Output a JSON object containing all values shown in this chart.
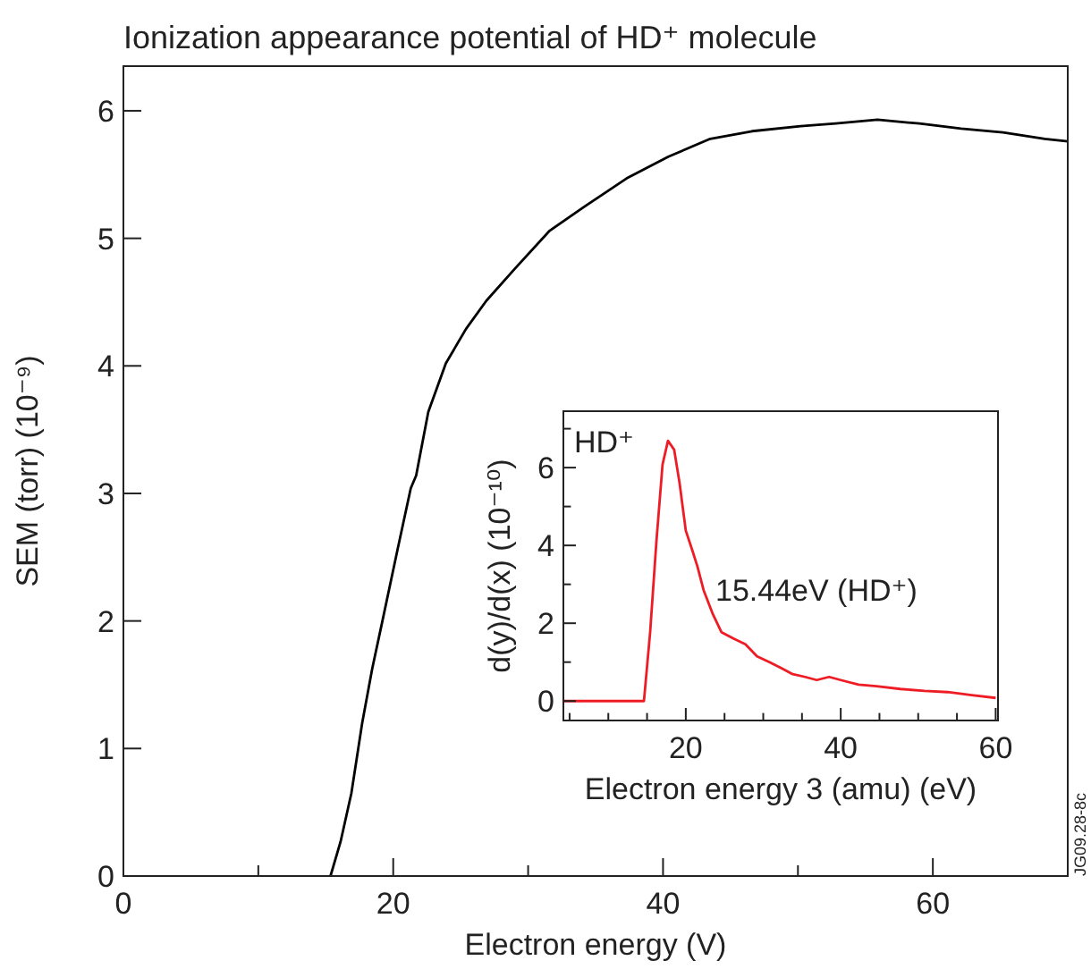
{
  "chart_data": [
    {
      "type": "line",
      "title": "Ionization appearance potential of HD⁺ molecule",
      "xlabel": "Electron energy (V)",
      "ylabel": "SEM (torr) (10⁻⁹)",
      "xlim": [
        0,
        70
      ],
      "ylim": [
        0,
        6.35
      ],
      "xticks": [
        0,
        {
          "value": 10,
          "label": null
        },
        20,
        {
          "value": 30,
          "label": null
        },
        40,
        {
          "value": 50,
          "label": null
        },
        60
      ],
      "yticks": [
        0,
        1,
        2,
        3,
        4,
        5,
        6
      ],
      "annotations": [
        "JG09.28-8c"
      ],
      "series": [
        {
          "color": "#000000",
          "x": [
            15.35,
            16.1,
            16.9,
            17.7,
            18.45,
            19.2,
            20.3,
            21.3,
            21.7,
            22.6,
            23.9,
            25.4,
            26.9,
            29.0,
            31.6,
            34.2,
            37.3,
            40.4,
            43.5,
            46.6,
            50.2,
            52.8,
            55.9,
            59.0,
            62.1,
            65.2,
            68.3,
            70
          ],
          "values": [
            0,
            0.27,
            0.65,
            1.2,
            1.63,
            2.0,
            2.55,
            3.04,
            3.14,
            3.64,
            4.02,
            4.29,
            4.51,
            4.76,
            5.06,
            5.25,
            5.47,
            5.64,
            5.78,
            5.84,
            5.88,
            5.9,
            5.93,
            5.9,
            5.86,
            5.83,
            5.78,
            5.76
          ]
        }
      ]
    },
    {
      "type": "line",
      "xlabel": "Electron energy 3 (amu) (eV)",
      "ylabel": "d(y)/d(x) (10⁻¹⁰)",
      "xlim": [
        4.2,
        60.3
      ],
      "ylim": [
        -0.5,
        7.45
      ],
      "xticks": [
        {
          "value": 5,
          "label": null
        },
        {
          "value": 10,
          "label": null
        },
        {
          "value": 15,
          "label": null
        },
        20,
        {
          "value": 25,
          "label": null
        },
        {
          "value": 30,
          "label": null
        },
        {
          "value": 35,
          "label": null
        },
        40,
        {
          "value": 45,
          "label": null
        },
        {
          "value": 50,
          "label": null
        },
        {
          "value": 55,
          "label": null
        },
        60
      ],
      "yticks": [
        0,
        {
          "value": 1,
          "label": null
        },
        2,
        {
          "value": 3,
          "label": null
        },
        4,
        {
          "value": 5,
          "label": null
        },
        6,
        {
          "value": 7,
          "label": null
        }
      ],
      "annotations": [
        "HD⁺",
        "15.44eV (HD⁺)"
      ],
      "series": [
        {
          "color": "#ee1c24",
          "x": [
            4.2,
            14.6,
            15.4,
            16.2,
            17,
            17.7,
            18.5,
            19.2,
            20,
            20.8,
            21.5,
            22.3,
            23.5,
            24.6,
            26.2,
            27.7,
            29.2,
            30.8,
            32.3,
            33.8,
            35.4,
            36.9,
            38.5,
            40,
            42.3,
            44.6,
            47.7,
            50.8,
            53.8,
            56.9,
            60
          ],
          "values": [
            0,
            0,
            1.77,
            4.08,
            6.08,
            6.69,
            6.46,
            5.6,
            4.38,
            3.9,
            3.46,
            2.85,
            2.23,
            1.77,
            1.6,
            1.46,
            1.15,
            1.0,
            0.85,
            0.69,
            0.62,
            0.54,
            0.62,
            0.54,
            0.42,
            0.38,
            0.31,
            0.26,
            0.23,
            0.15,
            0.08
          ]
        }
      ]
    }
  ]
}
